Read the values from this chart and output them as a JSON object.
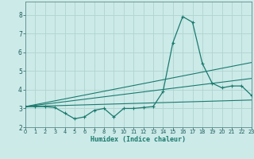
{
  "xlabel": "Humidex (Indice chaleur)",
  "xlim": [
    0,
    23
  ],
  "ylim": [
    2,
    8.7
  ],
  "yticks": [
    2,
    3,
    4,
    5,
    6,
    7,
    8
  ],
  "xticks": [
    0,
    1,
    2,
    3,
    4,
    5,
    6,
    7,
    8,
    9,
    10,
    11,
    12,
    13,
    14,
    15,
    16,
    17,
    18,
    19,
    20,
    21,
    22,
    23
  ],
  "bg_color": "#cceae8",
  "grid_color": "#b0d4d0",
  "line_color": "#1a7a6e",
  "main_x": [
    0,
    1,
    2,
    3,
    4,
    5,
    6,
    7,
    8,
    9,
    10,
    11,
    12,
    13,
    14,
    15,
    16,
    17,
    18,
    19,
    20,
    21,
    22,
    23
  ],
  "main_y": [
    3.1,
    3.1,
    3.1,
    3.05,
    2.75,
    2.45,
    2.55,
    2.9,
    3.0,
    2.55,
    3.0,
    3.0,
    3.05,
    3.1,
    3.9,
    6.5,
    7.9,
    7.6,
    5.4,
    4.35,
    4.1,
    4.2,
    4.2,
    3.7
  ],
  "line1": {
    "x": [
      0,
      23
    ],
    "y": [
      3.1,
      3.45
    ]
  },
  "line2": {
    "x": [
      0,
      23
    ],
    "y": [
      3.1,
      5.45
    ]
  },
  "line3": {
    "x": [
      0,
      23
    ],
    "y": [
      3.1,
      4.6
    ]
  }
}
